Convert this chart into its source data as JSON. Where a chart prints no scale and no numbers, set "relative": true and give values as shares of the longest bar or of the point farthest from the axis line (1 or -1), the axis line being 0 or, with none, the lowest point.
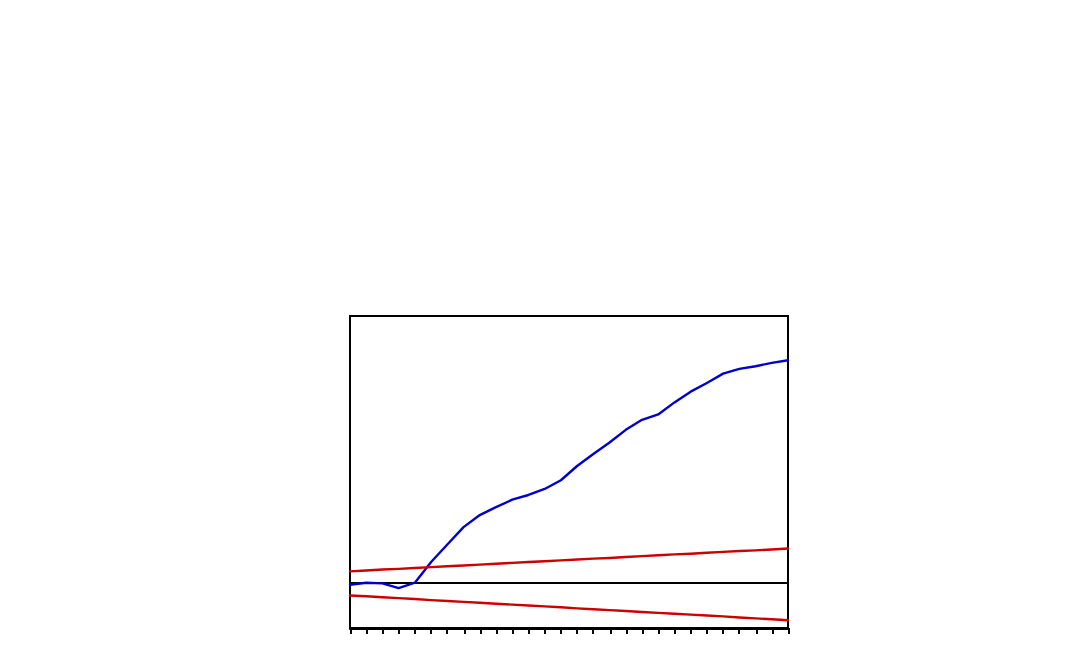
{
  "chart_data": {
    "type": "line",
    "relative": true,
    "categories": [
      null,
      null,
      null,
      null,
      null,
      null,
      null,
      null,
      null,
      null,
      null,
      null,
      null,
      null,
      null,
      null,
      null,
      null,
      null,
      null,
      null,
      null,
      null,
      null,
      null,
      null,
      null,
      null
    ],
    "series": [
      {
        "color": "#0000cc",
        "values": [
          -0.006,
          0.003,
          0,
          -0.021,
          0.003,
          0.096,
          0.174,
          0.252,
          0.306,
          0.342,
          0.375,
          0.396,
          0.423,
          0.462,
          0.526,
          0.58,
          0.631,
          0.688,
          0.733,
          0.757,
          0.811,
          0.859,
          0.898,
          0.94,
          0.961,
          0.973,
          0.988,
          1
        ]
      },
      {
        "color": "#cc0000",
        "values": [
          0.054,
          0.058,
          0.062,
          0.065,
          0.069,
          0.073,
          0.077,
          0.08,
          0.084,
          0.088,
          0.092,
          0.096,
          0.099,
          0.103,
          0.107,
          0.111,
          0.114,
          0.118,
          0.122,
          0.126,
          0.13,
          0.133,
          0.137,
          0.141,
          0.145,
          0.148,
          0.152,
          0.156
        ]
      },
      {
        "color": "#cc0000",
        "values": [
          -0.054,
          -0.058,
          -0.062,
          -0.066,
          -0.07,
          -0.075,
          -0.079,
          -0.083,
          -0.087,
          -0.091,
          -0.095,
          -0.099,
          -0.103,
          -0.107,
          -0.112,
          -0.116,
          -0.12,
          -0.124,
          -0.128,
          -0.132,
          -0.136,
          -0.14,
          -0.144,
          -0.148,
          -0.153,
          -0.157,
          -0.161,
          -0.165
        ]
      }
    ],
    "grid": false,
    "marker": "none",
    "line_style": "solid"
  }
}
